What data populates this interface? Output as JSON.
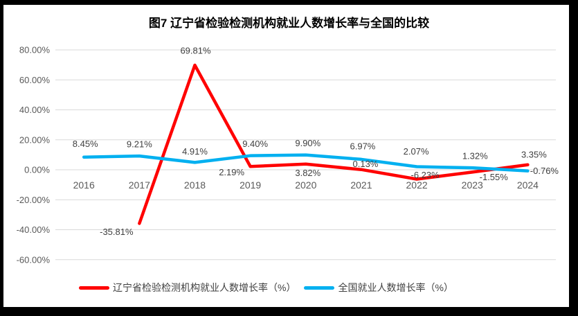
{
  "chart_data": {
    "type": "line",
    "title": "图7  辽宁省检验检测机构就业人数增长率与全国的比较",
    "categories": [
      "2016",
      "2017",
      "2018",
      "2019",
      "2020",
      "2021",
      "2022",
      "2023",
      "2024"
    ],
    "xlabel": "",
    "ylabel": "",
    "ylim": [
      -60,
      80
    ],
    "ytick_step": 20,
    "yticks": [
      "80.00%",
      "60.00%",
      "40.00%",
      "20.00%",
      "0.00%",
      "-20.00%",
      "-40.00%",
      "-60.00%"
    ],
    "grid": true,
    "legend_position": "bottom",
    "colors": {
      "grid": "#d9d9d9",
      "axis_text": "#595959",
      "data_label_text": "#3f3f3f",
      "frame": "#000000"
    },
    "series": [
      {
        "name": "辽宁省检验检测机构就业人数增长率（%）",
        "color": "#FF0000",
        "values": [
          null,
          -35.81,
          69.81,
          2.19,
          3.82,
          0.13,
          -6.23,
          -1.55,
          3.35
        ],
        "labels": [
          "",
          "-35.81%",
          "69.81%",
          "2.19%",
          "3.82%",
          "0.13%",
          "-6.23%",
          "-1.55%",
          "3.35%"
        ]
      },
      {
        "name": "全国就业人数增长率（%）",
        "color": "#00B0F0",
        "values": [
          8.45,
          9.21,
          4.91,
          9.4,
          9.9,
          6.97,
          2.07,
          1.32,
          -0.76
        ],
        "labels": [
          "8.45%",
          "9.21%",
          "4.91%",
          "9.40%",
          "9.90%",
          "6.97%",
          "2.07%",
          "1.32%",
          "-0.76%"
        ]
      }
    ]
  }
}
